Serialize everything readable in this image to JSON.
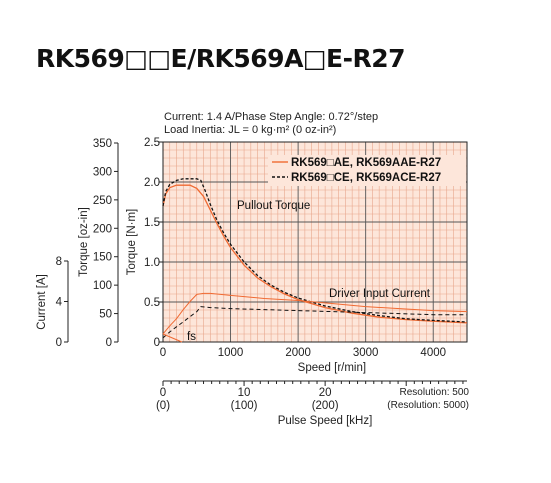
{
  "title": "RK569□□E/RK569A□E-R27",
  "conditions": {
    "line1": "Current: 1.4 A/Phase    Step Angle: 0.72°/step",
    "line2": "Load Inertia: JL = 0 kg·m² (0 oz-in²)"
  },
  "chart_data": {
    "type": "line",
    "xlabel": "Speed [r/min]",
    "xlim": [
      0,
      4500
    ],
    "x_ticks": [
      0,
      1000,
      2000,
      3000,
      4000
    ],
    "ylabel_torque_nm": "Torque [N·m]",
    "ylim_torque_nm": [
      0,
      2.5
    ],
    "torque_nm_ticks": [
      "0",
      "0.5",
      "1.0",
      "1.5",
      "2.0",
      "2.5"
    ],
    "ylabel_torque_ozin": "Torque [oz-in]",
    "torque_ozin_ticks": [
      "0",
      "50",
      "100",
      "150",
      "200",
      "250",
      "300",
      "350"
    ],
    "ylabel_current": "Current [A]",
    "current_ticks": [
      "0",
      "4",
      "8"
    ],
    "grid": true,
    "legend": "top-right",
    "series": [
      {
        "name": "RK569□AE, RK569AAE-R27",
        "kind": "pullout-torque",
        "style": "solid",
        "color": "#f06a32",
        "x": [
          0,
          40,
          100,
          200,
          300,
          400,
          500,
          600,
          700,
          800,
          900,
          1000,
          1200,
          1400,
          1600,
          1800,
          2000,
          2400,
          2800,
          3200,
          3600,
          4000,
          4500
        ],
        "y": [
          1.7,
          1.85,
          1.93,
          1.96,
          1.96,
          1.96,
          1.92,
          1.82,
          1.65,
          1.48,
          1.32,
          1.18,
          0.96,
          0.8,
          0.69,
          0.6,
          0.53,
          0.43,
          0.36,
          0.31,
          0.28,
          0.26,
          0.24
        ]
      },
      {
        "name": "RK569□CE, RK569ACE-R27",
        "kind": "pullout-torque",
        "style": "dashed",
        "color": "#111111",
        "x": [
          0,
          40,
          100,
          200,
          300,
          400,
          500,
          560,
          620,
          700,
          800,
          900,
          1000,
          1200,
          1400,
          1600,
          1800,
          2000,
          2400,
          2800,
          3200,
          3600,
          4000,
          4500
        ],
        "y": [
          1.7,
          1.88,
          1.97,
          2.02,
          2.04,
          2.04,
          2.04,
          2.02,
          1.9,
          1.72,
          1.52,
          1.36,
          1.22,
          1.0,
          0.83,
          0.71,
          0.62,
          0.55,
          0.45,
          0.38,
          0.33,
          0.29,
          0.27,
          0.25
        ]
      },
      {
        "name": "RK569□AE, RK569AAE-R27",
        "kind": "driver-input-current",
        "style": "solid",
        "color": "#f06a32",
        "x": [
          0,
          100,
          200,
          300,
          400,
          500,
          600,
          700,
          1000,
          1500,
          2000,
          2500,
          3000,
          3500,
          4000,
          4500
        ],
        "y": [
          0.8,
          1.6,
          2.3,
          3.2,
          4.0,
          4.7,
          4.8,
          4.8,
          4.6,
          4.3,
          4.1,
          3.8,
          3.5,
          3.3,
          3.1,
          3.0
        ]
      },
      {
        "name": "RK569□CE, RK569ACE-R27",
        "kind": "driver-input-current",
        "style": "dashed",
        "color": "#111111",
        "x": [
          0,
          100,
          200,
          300,
          400,
          500,
          560,
          700,
          1000,
          1500,
          2000,
          2500,
          3000,
          3500,
          4000,
          4500
        ],
        "y": [
          0.4,
          1.0,
          1.5,
          2.0,
          2.5,
          3.0,
          3.5,
          3.4,
          3.3,
          3.2,
          3.1,
          3.0,
          2.9,
          2.8,
          2.7,
          2.7
        ]
      }
    ],
    "annotations": {
      "pullout": "Pullout Torque",
      "current": "Driver Input Current",
      "fs": "fs"
    },
    "fs_marker": {
      "x": [
        0,
        280
      ],
      "y": [
        0.1,
        0.0
      ]
    },
    "pulse_axis": {
      "label": "Pulse Speed [kHz]",
      "resolution_labels": [
        "Resolution: 500",
        "(Resolution: 5000)"
      ],
      "ticks": [
        {
          "speed": 0,
          "top": "0",
          "bottom": "(0)"
        },
        {
          "speed": 1200,
          "top": "10",
          "bottom": "(100)"
        },
        {
          "speed": 2400,
          "top": "20",
          "bottom": "(200)"
        }
      ]
    }
  },
  "colors": {
    "plot_bg": "#fde6da",
    "grid_minor": "#e8a68c",
    "grid_major": "#555555",
    "solid_line": "#f06a32",
    "dashed_line": "#111111"
  }
}
